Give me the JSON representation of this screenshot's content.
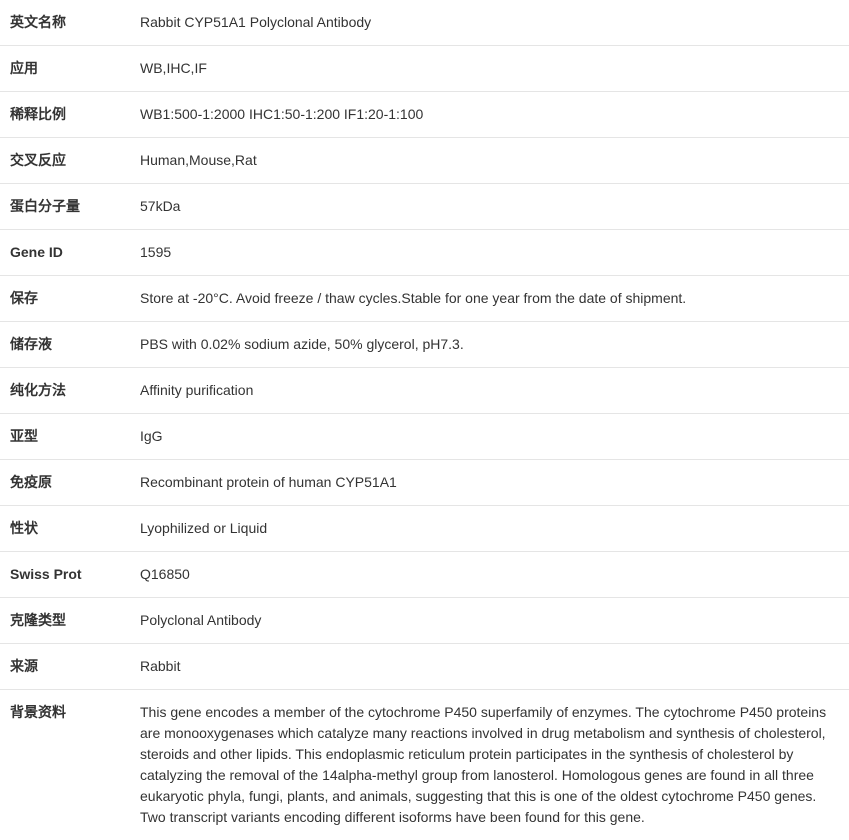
{
  "table": {
    "border_color": "#e5e5e5",
    "label_fontweight": "bold",
    "text_color": "#333333",
    "background_color": "#ffffff",
    "font_size": 14,
    "label_col_width": 130,
    "cell_padding": "12px 8px 12px 10px",
    "line_height": 1.5
  },
  "rows": [
    {
      "label": "英文名称",
      "value": "Rabbit CYP51A1 Polyclonal Antibody"
    },
    {
      "label": "应用",
      "value": "WB,IHC,IF"
    },
    {
      "label": "稀释比例",
      "value": "WB1:500-1:2000 IHC1:50-1:200 IF1:20-1:100"
    },
    {
      "label": "交叉反应",
      "value": "Human,Mouse,Rat"
    },
    {
      "label": "蛋白分子量",
      "value": "57kDa"
    },
    {
      "label": "Gene ID",
      "value": "1595"
    },
    {
      "label": "保存",
      "value": "Store at -20°C. Avoid freeze / thaw cycles.Stable for one year from the date of shipment."
    },
    {
      "label": "储存液",
      "value": "PBS with 0.02% sodium azide, 50% glycerol, pH7.3."
    },
    {
      "label": "纯化方法",
      "value": "Affinity purification"
    },
    {
      "label": "亚型",
      "value": "IgG"
    },
    {
      "label": "免疫原",
      "value": "Recombinant protein of human CYP51A1"
    },
    {
      "label": "性状",
      "value": "Lyophilized or Liquid"
    },
    {
      "label": "Swiss Prot",
      "value": "Q16850"
    },
    {
      "label": "克隆类型",
      "value": "Polyclonal Antibody"
    },
    {
      "label": "来源",
      "value": "Rabbit"
    },
    {
      "label": "背景资料",
      "value": "This gene encodes a member of the cytochrome P450 superfamily of enzymes. The cytochrome P450 proteins are monooxygenases which catalyze many reactions involved in drug metabolism and synthesis of cholesterol, steroids and other lipids. This endoplasmic reticulum protein participates in the synthesis of cholesterol by catalyzing the removal of the 14alpha-methyl group from lanosterol. Homologous genes are found in all three eukaryotic phyla, fungi, plants, and animals, suggesting that this is one of the oldest cytochrome P450 genes. Two transcript variants encoding different isoforms have been found for this gene."
    }
  ]
}
